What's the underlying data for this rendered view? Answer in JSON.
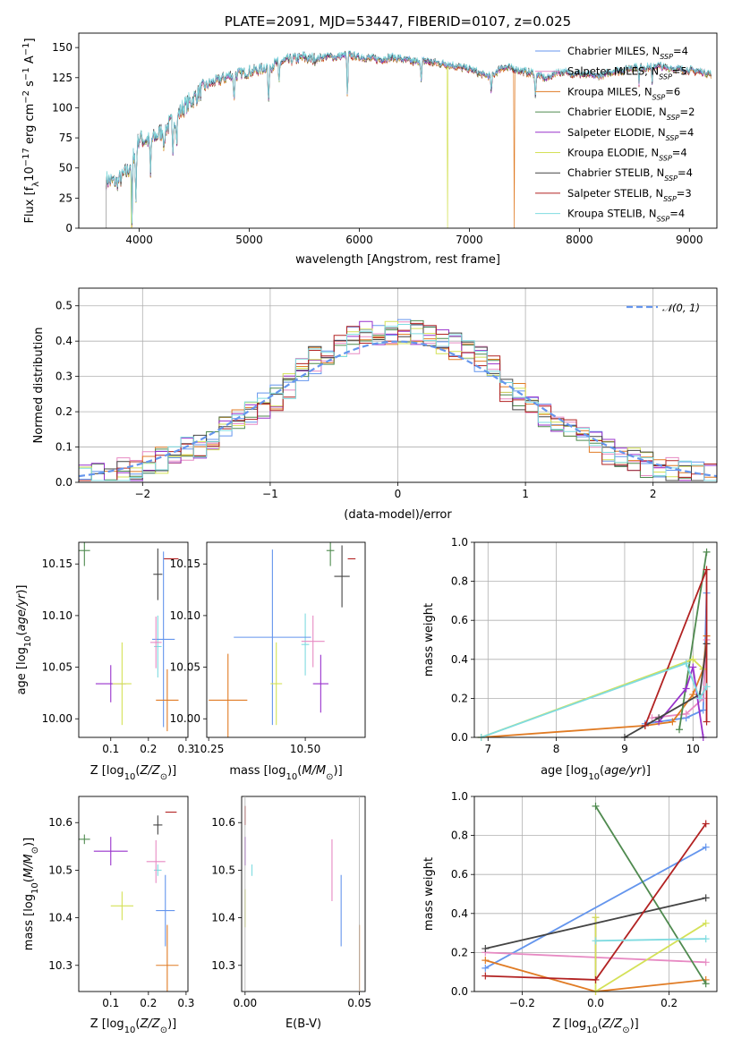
{
  "colors": {
    "Chabrier MILES": "#6495ed",
    "Salpeter MILES": "#e78ac3",
    "Kroupa MILES": "#e07b24",
    "Chabrier ELODIE": "#4f8a4f",
    "Salpeter ELODIE": "#9932cc",
    "Kroupa ELODIE": "#d4e157",
    "Chabrier STELIB": "#444444",
    "Salpeter STELIB": "#b22222",
    "Kroupa STELIB": "#7fdbe0"
  },
  "chart_data": [
    {
      "id": "spectrum",
      "type": "line",
      "title": "PLATE=2091, MJD=53447, FIBERID=0107, z=0.025",
      "xlabel": "wavelength [Angstrom, rest frame]",
      "ylabel_parts": [
        "Flux [f",
        "λ",
        "10",
        "−17",
        " erg cm",
        "−2",
        " s",
        "−1",
        " A",
        "−1",
        "]"
      ],
      "xlim": [
        3450,
        9250
      ],
      "ylim": [
        0,
        162
      ],
      "xticks": [
        4000,
        5000,
        6000,
        7000,
        8000,
        9000
      ],
      "yticks": [
        0,
        25,
        50,
        75,
        100,
        125,
        150
      ],
      "grid": false,
      "legend_position": "top-right",
      "legend": [
        {
          "name": "Chabrier MILES",
          "nssp": "4"
        },
        {
          "name": "Salpeter MILES",
          "nssp": "5"
        },
        {
          "name": "Kroupa MILES",
          "nssp": "6"
        },
        {
          "name": "Chabrier ELODIE",
          "nssp": "2"
        },
        {
          "name": "Salpeter ELODIE",
          "nssp": "4"
        },
        {
          "name": "Kroupa ELODIE",
          "nssp": "4"
        },
        {
          "name": "Chabrier STELIB",
          "nssp": "4"
        },
        {
          "name": "Salpeter STELIB",
          "nssp": "3"
        },
        {
          "name": "Kroupa STELIB",
          "nssp": "4"
        }
      ],
      "continuum": [
        [
          3700,
          40
        ],
        [
          3800,
          38
        ],
        [
          3900,
          48
        ],
        [
          4000,
          75
        ],
        [
          4100,
          72
        ],
        [
          4200,
          80
        ],
        [
          4300,
          88
        ],
        [
          4400,
          100
        ],
        [
          4500,
          108
        ],
        [
          4600,
          118
        ],
        [
          4700,
          122
        ],
        [
          4800,
          126
        ],
        [
          4900,
          128
        ],
        [
          5000,
          130
        ],
        [
          5100,
          132
        ],
        [
          5200,
          135
        ],
        [
          5300,
          138
        ],
        [
          5400,
          140
        ],
        [
          5500,
          142
        ],
        [
          5600,
          140
        ],
        [
          5700,
          143
        ],
        [
          5800,
          142
        ],
        [
          5900,
          144
        ],
        [
          6000,
          142
        ],
        [
          6100,
          141
        ],
        [
          6200,
          140
        ],
        [
          6300,
          142
        ],
        [
          6400,
          140
        ],
        [
          6500,
          138
        ],
        [
          6600,
          139
        ],
        [
          6700,
          137
        ],
        [
          6800,
          136
        ],
        [
          6900,
          134
        ],
        [
          7000,
          132
        ],
        [
          7100,
          128
        ],
        [
          7200,
          126
        ],
        [
          7300,
          134
        ],
        [
          7400,
          132
        ],
        [
          7500,
          130
        ],
        [
          7600,
          128
        ],
        [
          7700,
          124
        ],
        [
          7800,
          130
        ],
        [
          7900,
          129
        ],
        [
          8000,
          128
        ],
        [
          8100,
          127
        ],
        [
          8200,
          126
        ],
        [
          8300,
          130
        ],
        [
          8400,
          131
        ],
        [
          8500,
          134
        ],
        [
          8600,
          133
        ],
        [
          8700,
          135
        ],
        [
          8800,
          133
        ],
        [
          8900,
          132
        ],
        [
          9000,
          131
        ],
        [
          9100,
          130
        ],
        [
          9200,
          128
        ]
      ],
      "absorption_features": [
        [
          3934,
          55
        ],
        [
          3969,
          50
        ],
        [
          4102,
          30
        ],
        [
          4227,
          20
        ],
        [
          4304,
          30
        ],
        [
          4340,
          25
        ],
        [
          4861,
          25
        ],
        [
          5175,
          35
        ],
        [
          5270,
          20
        ],
        [
          5892,
          40
        ],
        [
          6563,
          20
        ],
        [
          7200,
          15
        ],
        [
          7600,
          20
        ],
        [
          8542,
          15
        ],
        [
          8662,
          15
        ]
      ],
      "spikes_to_zero": [
        {
          "series": "Kroupa ELODIE",
          "x": 6800
        },
        {
          "series": "Kroupa MILES",
          "x": 7410
        },
        {
          "series": "Kroupa ELODIE",
          "x": 3930
        }
      ]
    },
    {
      "id": "residuals",
      "type": "histogram",
      "xlabel": "(data-model)/error",
      "ylabel": "Normed distribution",
      "xlim": [
        -2.5,
        2.5
      ],
      "ylim": [
        0,
        0.55
      ],
      "xticks": [
        -2,
        -1,
        0,
        1,
        2
      ],
      "yticks": [
        0.0,
        0.1,
        0.2,
        0.3,
        0.4,
        0.5
      ],
      "grid": true,
      "legend_position": "top-right",
      "legend": [
        {
          "name": "N(0,1)",
          "label": "𝒩(0, 1)"
        }
      ],
      "gaussian": {
        "mean": 0,
        "sigma": 1,
        "color": "#6495ed"
      }
    },
    {
      "id": "age-vs-Z",
      "type": "errorbar",
      "xlabel": "Z [log10(Z/Z⊙)]",
      "ylabel": "age  [log10(age/yr)]",
      "xlim": [
        0.015,
        0.305
      ],
      "ylim": [
        9.982,
        10.171
      ],
      "xticks": [
        0.1,
        0.2,
        0.3
      ],
      "yticks": [
        10.0,
        10.05,
        10.1,
        10.15
      ],
      "points": [
        {
          "series": "Chabrier ELODIE",
          "x": 0.03,
          "y": 10.163,
          "xerr": 0.015,
          "yerr": 0.015
        },
        {
          "series": "Chabrier STELIB",
          "x": 0.225,
          "y": 10.14,
          "xerr": 0.012,
          "yerr": 0.025
        },
        {
          "series": "Salpeter STELIB",
          "x": 0.26,
          "y": 10.155,
          "xerr": 0.02,
          "yerr": 0.0
        },
        {
          "series": "Kroupa STELIB",
          "x": 0.225,
          "y": 10.07,
          "xerr": 0.01,
          "yerr": 0.03
        },
        {
          "series": "Chabrier MILES",
          "x": 0.24,
          "y": 10.077,
          "xerr": 0.03,
          "yerr": 0.085
        },
        {
          "series": "Salpeter MILES",
          "x": 0.22,
          "y": 10.074,
          "xerr": 0.015,
          "yerr": 0.025
        },
        {
          "series": "Kroupa MILES",
          "x": 0.25,
          "y": 10.018,
          "xerr": 0.03,
          "yerr": 0.03
        },
        {
          "series": "Salpeter ELODIE",
          "x": 0.1,
          "y": 10.034,
          "xerr": 0.04,
          "yerr": 0.018
        },
        {
          "series": "Kroupa ELODIE",
          "x": 0.13,
          "y": 10.034,
          "xerr": 0.025,
          "yerr": 0.04
        }
      ]
    },
    {
      "id": "age-vs-mass",
      "type": "errorbar",
      "xlabel": "mass [log10(M/M⊙)]",
      "ylabel": "",
      "xlim": [
        10.245,
        10.655
      ],
      "ylim": [
        9.982,
        10.171
      ],
      "xticks": [
        10.25,
        10.5
      ],
      "yticks": [
        10.0,
        10.05,
        10.1,
        10.15
      ],
      "points": [
        {
          "series": "Chabrier ELODIE",
          "x": 10.565,
          "y": 10.163,
          "xerr": 0.01,
          "yerr": 0.015
        },
        {
          "series": "Chabrier STELIB",
          "x": 10.595,
          "y": 10.138,
          "xerr": 0.02,
          "yerr": 0.03
        },
        {
          "series": "Salpeter STELIB",
          "x": 10.62,
          "y": 10.155,
          "xerr": 0.01,
          "yerr": 0.0
        },
        {
          "series": "Kroupa STELIB",
          "x": 10.5,
          "y": 10.072,
          "xerr": 0.01,
          "yerr": 0.03
        },
        {
          "series": "Chabrier MILES",
          "x": 10.415,
          "y": 10.079,
          "xerr": 0.1,
          "yerr": 0.085
        },
        {
          "series": "Salpeter MILES",
          "x": 10.52,
          "y": 10.075,
          "xerr": 0.03,
          "yerr": 0.025
        },
        {
          "series": "Kroupa MILES",
          "x": 10.3,
          "y": 10.018,
          "xerr": 0.05,
          "yerr": 0.045
        },
        {
          "series": "Salpeter ELODIE",
          "x": 10.54,
          "y": 10.034,
          "xerr": 0.02,
          "yerr": 0.028
        },
        {
          "series": "Kroupa ELODIE",
          "x": 10.425,
          "y": 10.034,
          "xerr": 0.015,
          "yerr": 0.04
        }
      ]
    },
    {
      "id": "massweight-vs-age",
      "type": "line",
      "xlabel": "age  [log10(age/yr)]",
      "ylabel": "mass weight",
      "xlim": [
        6.8,
        10.35
      ],
      "ylim": [
        0,
        1.0
      ],
      "xticks": [
        7,
        8,
        9,
        10
      ],
      "yticks": [
        0.0,
        0.2,
        0.4,
        0.6,
        0.8,
        1.0
      ],
      "grid": true,
      "series": [
        {
          "name": "Chabrier MILES",
          "points": [
            [
              9.3,
              0.07
            ],
            [
              9.9,
              0.1
            ],
            [
              10.15,
              0.14
            ],
            [
              10.2,
              0.74
            ]
          ]
        },
        {
          "name": "Salpeter MILES",
          "points": [
            [
              9.4,
              0.1
            ],
            [
              9.9,
              0.12
            ],
            [
              10.15,
              0.2
            ],
            [
              10.2,
              0.5
            ]
          ]
        },
        {
          "name": "Kroupa MILES",
          "points": [
            [
              6.9,
              0.0
            ],
            [
              9.3,
              0.06
            ],
            [
              9.7,
              0.08
            ],
            [
              10.0,
              0.22
            ],
            [
              10.15,
              0.35
            ],
            [
              10.2,
              0.52
            ]
          ]
        },
        {
          "name": "Chabrier ELODIE",
          "points": [
            [
              9.8,
              0.04
            ],
            [
              10.2,
              0.95
            ]
          ]
        },
        {
          "name": "Salpeter ELODIE",
          "points": [
            [
              9.5,
              0.08
            ],
            [
              9.9,
              0.25
            ],
            [
              10.0,
              0.36
            ],
            [
              10.15,
              0.0
            ]
          ]
        },
        {
          "name": "Kroupa ELODIE",
          "points": [
            [
              6.9,
              0.0
            ],
            [
              10.0,
              0.4
            ],
            [
              10.15,
              0.35
            ]
          ]
        },
        {
          "name": "Chabrier STELIB",
          "points": [
            [
              9.0,
              0.0
            ],
            [
              9.5,
              0.1
            ],
            [
              10.1,
              0.22
            ],
            [
              10.2,
              0.48
            ]
          ]
        },
        {
          "name": "Salpeter STELIB",
          "points": [
            [
              9.3,
              0.06
            ],
            [
              10.2,
              0.86
            ],
            [
              10.2,
              0.08
            ]
          ]
        },
        {
          "name": "Kroupa STELIB",
          "points": [
            [
              6.9,
              0.0
            ],
            [
              9.9,
              0.38
            ],
            [
              10.1,
              0.2
            ],
            [
              10.2,
              0.26
            ]
          ]
        }
      ]
    },
    {
      "id": "mass-vs-Z",
      "type": "errorbar",
      "xlabel": "Z [log10(Z/Z⊙)]",
      "ylabel": "mass [log10(M/M⊙)]",
      "xlim": [
        0.015,
        0.305
      ],
      "ylim": [
        10.245,
        10.655
      ],
      "xticks": [
        0.1,
        0.2,
        0.3
      ],
      "yticks": [
        10.3,
        10.4,
        10.5,
        10.6
      ],
      "points": [
        {
          "series": "Chabrier ELODIE",
          "x": 0.03,
          "y": 10.565,
          "xerr": 0.015,
          "yerr": 0.01
        },
        {
          "series": "Chabrier STELIB",
          "x": 0.225,
          "y": 10.595,
          "xerr": 0.012,
          "yerr": 0.02
        },
        {
          "series": "Salpeter STELIB",
          "x": 0.26,
          "y": 10.622,
          "xerr": 0.015,
          "yerr": 0.0
        },
        {
          "series": "Kroupa STELIB",
          "x": 0.225,
          "y": 10.5,
          "xerr": 0.01,
          "yerr": 0.012
        },
        {
          "series": "Chabrier MILES",
          "x": 0.245,
          "y": 10.415,
          "xerr": 0.025,
          "yerr": 0.075
        },
        {
          "series": "Salpeter MILES",
          "x": 0.22,
          "y": 10.518,
          "xerr": 0.025,
          "yerr": 0.045
        },
        {
          "series": "Kroupa MILES",
          "x": 0.25,
          "y": 10.3,
          "xerr": 0.03,
          "yerr": 0.085
        },
        {
          "series": "Salpeter ELODIE",
          "x": 0.1,
          "y": 10.54,
          "xerr": 0.045,
          "yerr": 0.03
        },
        {
          "series": "Kroupa ELODIE",
          "x": 0.13,
          "y": 10.425,
          "xerr": 0.03,
          "yerr": 0.03
        }
      ]
    },
    {
      "id": "mass-vs-EBV",
      "type": "errorbar",
      "xlabel": "E(B-V)",
      "ylabel": "",
      "xlim": [
        -0.0015,
        0.0525
      ],
      "ylim": [
        10.245,
        10.655
      ],
      "xticks": [
        0.0,
        0.05
      ],
      "yticks": [
        10.3,
        10.4,
        10.5,
        10.6
      ],
      "points": [
        {
          "series": "Salpeter STELIB",
          "x": 0.0,
          "y": 10.615,
          "xerr": 0.0,
          "yerr": 0.02
        },
        {
          "series": "Salpeter ELODIE",
          "x": 0.0,
          "y": 10.54,
          "xerr": 0.0,
          "yerr": 0.03
        },
        {
          "series": "Kroupa STELIB",
          "x": 0.003,
          "y": 10.5,
          "xerr": 0.0,
          "yerr": 0.012
        },
        {
          "series": "Kroupa ELODIE",
          "x": 0.0,
          "y": 10.42,
          "xerr": 0.0,
          "yerr": 0.04
        },
        {
          "series": "Salpeter MILES",
          "x": 0.038,
          "y": 10.5,
          "xerr": 0.0,
          "yerr": 0.065
        },
        {
          "series": "Chabrier MILES",
          "x": 0.042,
          "y": 10.415,
          "xerr": 0.0,
          "yerr": 0.075
        },
        {
          "series": "Kroupa MILES",
          "x": 0.05,
          "y": 10.3,
          "xerr": 0.0,
          "yerr": 0.085
        }
      ]
    },
    {
      "id": "massweight-vs-Z",
      "type": "line",
      "xlabel": "Z [log10(Z/Z⊙)]",
      "ylabel": "mass weight",
      "xlim": [
        -0.33,
        0.33
      ],
      "ylim": [
        0,
        1.0
      ],
      "xticks": [
        -0.2,
        0.0,
        0.2
      ],
      "yticks": [
        0.0,
        0.2,
        0.4,
        0.6,
        0.8,
        1.0
      ],
      "grid": true,
      "series": [
        {
          "name": "Chabrier MILES",
          "points": [
            [
              -0.3,
              0.12
            ],
            [
              0.3,
              0.74
            ]
          ]
        },
        {
          "name": "Salpeter MILES",
          "points": [
            [
              -0.3,
              0.2
            ],
            [
              0.3,
              0.15
            ]
          ]
        },
        {
          "name": "Kroupa MILES",
          "points": [
            [
              -0.3,
              0.16
            ],
            [
              0.0,
              0.0
            ],
            [
              0.3,
              0.06
            ]
          ]
        },
        {
          "name": "Chabrier ELODIE",
          "points": [
            [
              0.0,
              0.95
            ],
            [
              0.3,
              0.04
            ]
          ]
        },
        {
          "name": "Salpeter ELODIE",
          "points": [
            [
              0.0,
              0.38
            ],
            [
              0.0,
              0.06
            ]
          ]
        },
        {
          "name": "Kroupa ELODIE",
          "points": [
            [
              0.0,
              0.38
            ],
            [
              0.0,
              0.0
            ],
            [
              0.3,
              0.35
            ]
          ]
        },
        {
          "name": "Chabrier STELIB",
          "points": [
            [
              -0.3,
              0.22
            ],
            [
              0.3,
              0.48
            ]
          ]
        },
        {
          "name": "Salpeter STELIB",
          "points": [
            [
              -0.3,
              0.08
            ],
            [
              0.0,
              0.06
            ],
            [
              0.3,
              0.86
            ]
          ]
        },
        {
          "name": "Kroupa STELIB",
          "points": [
            [
              0.0,
              0.26
            ],
            [
              0.3,
              0.27
            ]
          ]
        }
      ]
    }
  ]
}
